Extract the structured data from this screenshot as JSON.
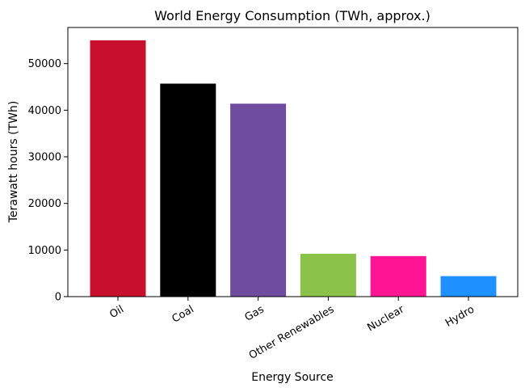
{
  "chart_data": {
    "type": "bar",
    "title": "World Energy Consumption (TWh, approx.)",
    "xlabel": "Energy Source",
    "ylabel": "Terawatt hours (TWh)",
    "categories": [
      "Oil",
      "Coal",
      "Gas",
      "Other Renewables",
      "Nuclear",
      "Hydro"
    ],
    "values": [
      55000,
      45700,
      41400,
      9200,
      8700,
      4400
    ],
    "colors": [
      "#c8102e",
      "#000000",
      "#6f4c9f",
      "#8bc34a",
      "#ff1493",
      "#1e90ff"
    ],
    "ylim": [
      0,
      57750
    ],
    "yticks": [
      0,
      10000,
      20000,
      30000,
      40000,
      50000
    ],
    "grid": false
  }
}
